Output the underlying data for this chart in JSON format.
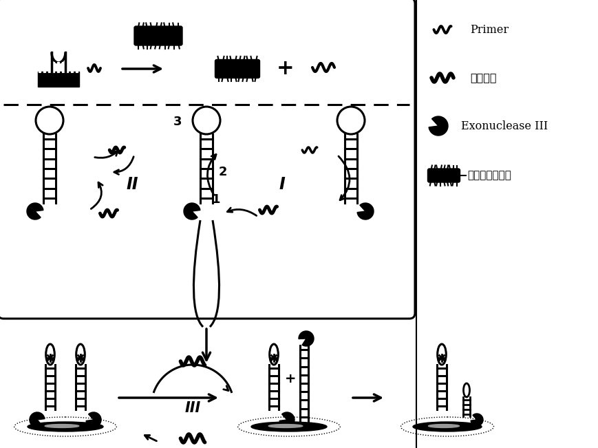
{
  "background_color": "#ffffff",
  "legend_labels": [
    "Primer",
    "二次目标",
    "Exonuclease III",
    "鼠伤寒沙门氏菌"
  ],
  "roman_I": "I",
  "roman_II": "II",
  "roman_III": "III",
  "step1": "1",
  "step2": "2",
  "step3": "3",
  "plus": "+",
  "lw_main": 2.2,
  "lw_thick": 3.5
}
